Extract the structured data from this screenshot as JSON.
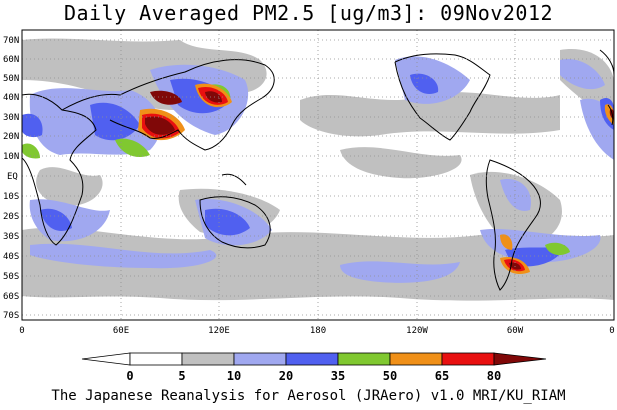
{
  "title": "Daily Averaged PM2.5 [ug/m3]: 09Nov2012",
  "footer": "The Japanese Reanalysis for Aerosol (JRAero) v1.0 MRI/KU_RIAM",
  "lat_labels": [
    "70N",
    "60N",
    "50N",
    "40N",
    "30N",
    "20N",
    "10N",
    "EQ",
    "10S",
    "20S",
    "30S",
    "40S",
    "50S",
    "60S",
    "70S"
  ],
  "lon_labels": [
    "0",
    "60E",
    "120E",
    "180",
    "120W",
    "60W",
    "0"
  ],
  "colorbar": {
    "values": [
      "0",
      "5",
      "10",
      "20",
      "35",
      "50",
      "65",
      "80"
    ],
    "colors": [
      "#ffffff",
      "#c0c0c0",
      "#a0a8f0",
      "#5060f0",
      "#80c830",
      "#f09018",
      "#e81010",
      "#800808"
    ]
  },
  "colors": {
    "land_outline": "#000000",
    "grid": "#909090",
    "background": "#ffffff"
  }
}
